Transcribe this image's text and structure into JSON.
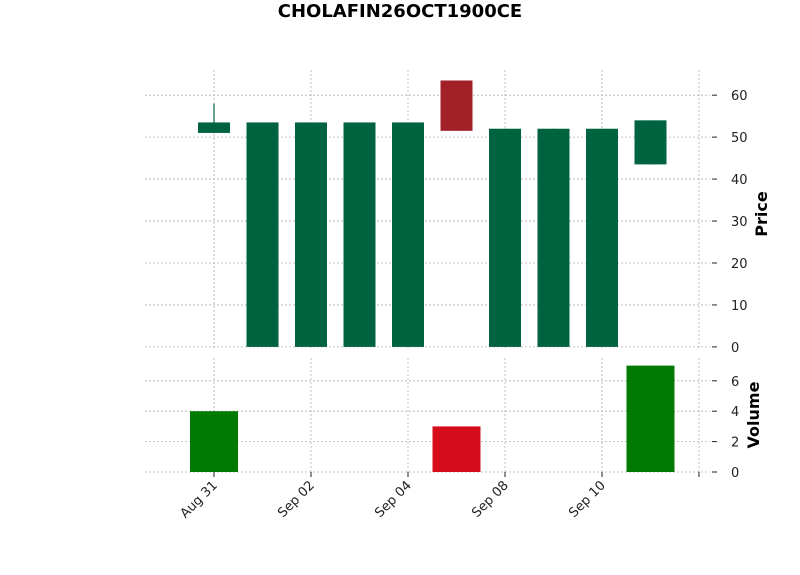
{
  "chart_data": {
    "type": "candlestick",
    "title": "CHOLAFIN26OCT1900CE",
    "ylabel": "Price",
    "volume_label": "Volume",
    "x_tick_labels": [
      "Aug 31",
      "Sep 02",
      "Sep 04",
      "Sep 08",
      "Sep 10"
    ],
    "price_ylim": [
      -0.5,
      66
    ],
    "price_ticks": [
      0,
      10,
      20,
      30,
      40,
      50,
      60
    ],
    "volume_ylim": [
      0,
      7.5
    ],
    "volume_ticks": [
      0,
      2,
      4,
      6
    ],
    "grid": true,
    "up_color": "#006340",
    "down_color": "#A02128",
    "volume_up_color": "#007a00",
    "volume_down_color": "#d50c19",
    "candles": [
      {
        "open": 51.0,
        "high": 58.0,
        "low": 51.0,
        "close": 53.5,
        "volume": 4
      },
      {
        "open": 0.0,
        "high": 53.5,
        "low": 0.0,
        "close": 53.5,
        "volume": 0
      },
      {
        "open": 0.0,
        "high": 53.5,
        "low": 0.0,
        "close": 53.5,
        "volume": 0
      },
      {
        "open": 0.0,
        "high": 53.5,
        "low": 0.0,
        "close": 53.5,
        "volume": 0
      },
      {
        "open": 0.0,
        "high": 53.5,
        "low": 0.0,
        "close": 53.5,
        "volume": 0
      },
      {
        "open": 63.5,
        "high": 63.5,
        "low": 51.5,
        "close": 51.5,
        "volume": 3
      },
      {
        "open": 0.0,
        "high": 52.0,
        "low": 0.0,
        "close": 52.0,
        "volume": 0
      },
      {
        "open": 0.0,
        "high": 52.0,
        "low": 0.0,
        "close": 52.0,
        "volume": 0
      },
      {
        "open": 0.0,
        "high": 52.0,
        "low": 0.0,
        "close": 52.0,
        "volume": 0
      },
      {
        "open": 43.5,
        "high": 54.0,
        "low": 43.5,
        "close": 54.0,
        "volume": 7
      }
    ]
  }
}
